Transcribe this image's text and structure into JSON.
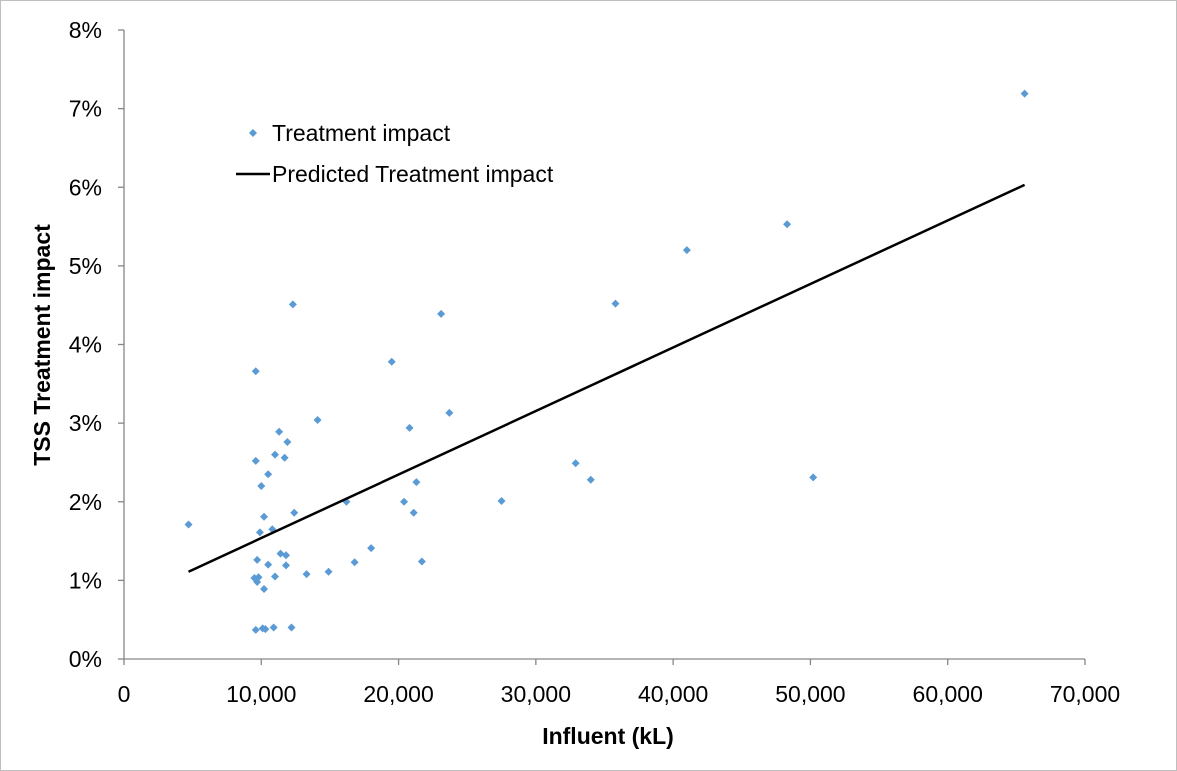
{
  "chart_data": {
    "type": "scatter",
    "title": "",
    "xlabel": "Influent (kL)",
    "ylabel": "TSS Treatment impact",
    "xlim": [
      0,
      70000
    ],
    "ylim": [
      0,
      0.08
    ],
    "x_ticks": [
      0,
      10000,
      20000,
      30000,
      40000,
      50000,
      60000,
      70000
    ],
    "x_tick_labels": [
      "0",
      "10,000",
      "20,000",
      "30,000",
      "40,000",
      "50,000",
      "60,000",
      "70,000"
    ],
    "y_ticks": [
      0,
      0.01,
      0.02,
      0.03,
      0.04,
      0.05,
      0.06,
      0.07,
      0.08
    ],
    "y_tick_labels": [
      "0%",
      "1%",
      "2%",
      "3%",
      "4%",
      "5%",
      "6%",
      "7%",
      "8%"
    ],
    "grid": false,
    "legend": {
      "position": "top-left"
    },
    "series": [
      {
        "name": "Treatment impact",
        "kind": "scatter",
        "marker": "diamond",
        "color": "#5b9bd5",
        "points": [
          [
            4700,
            0.0171
          ],
          [
            9600,
            0.0366
          ],
          [
            9600,
            0.0252
          ],
          [
            9700,
            0.0126
          ],
          [
            9500,
            0.0103
          ],
          [
            9700,
            0.0098
          ],
          [
            9800,
            0.0104
          ],
          [
            9600,
            0.0037
          ],
          [
            10000,
            0.022
          ],
          [
            10200,
            0.0181
          ],
          [
            9900,
            0.0161
          ],
          [
            10200,
            0.0089
          ],
          [
            10100,
            0.0039
          ],
          [
            10300,
            0.0038
          ],
          [
            10500,
            0.012
          ],
          [
            10500,
            0.0235
          ],
          [
            10800,
            0.0165
          ],
          [
            11000,
            0.026
          ],
          [
            11000,
            0.0105
          ],
          [
            10900,
            0.004
          ],
          [
            11300,
            0.0289
          ],
          [
            11400,
            0.0134
          ],
          [
            11700,
            0.0256
          ],
          [
            11900,
            0.0276
          ],
          [
            11800,
            0.0132
          ],
          [
            11800,
            0.0119
          ],
          [
            12300,
            0.0451
          ],
          [
            12400,
            0.0186
          ],
          [
            12200,
            0.004
          ],
          [
            13300,
            0.0108
          ],
          [
            14100,
            0.0304
          ],
          [
            14900,
            0.0111
          ],
          [
            16200,
            0.02
          ],
          [
            16800,
            0.0123
          ],
          [
            18000,
            0.0141
          ],
          [
            19500,
            0.0378
          ],
          [
            20400,
            0.02
          ],
          [
            20800,
            0.0294
          ],
          [
            21100,
            0.0186
          ],
          [
            21300,
            0.0225
          ],
          [
            21700,
            0.0124
          ],
          [
            23100,
            0.0439
          ],
          [
            23700,
            0.0313
          ],
          [
            27500,
            0.0201
          ],
          [
            32900,
            0.0249
          ],
          [
            34000,
            0.0228
          ],
          [
            35800,
            0.0452
          ],
          [
            41000,
            0.052
          ],
          [
            48300,
            0.0553
          ],
          [
            50200,
            0.0231
          ],
          [
            65600,
            0.0719
          ]
        ]
      },
      {
        "name": "Predicted Treatment impact",
        "kind": "line",
        "color": "#000000",
        "points": [
          [
            4700,
            0.0111
          ],
          [
            65600,
            0.0603
          ]
        ]
      }
    ]
  }
}
